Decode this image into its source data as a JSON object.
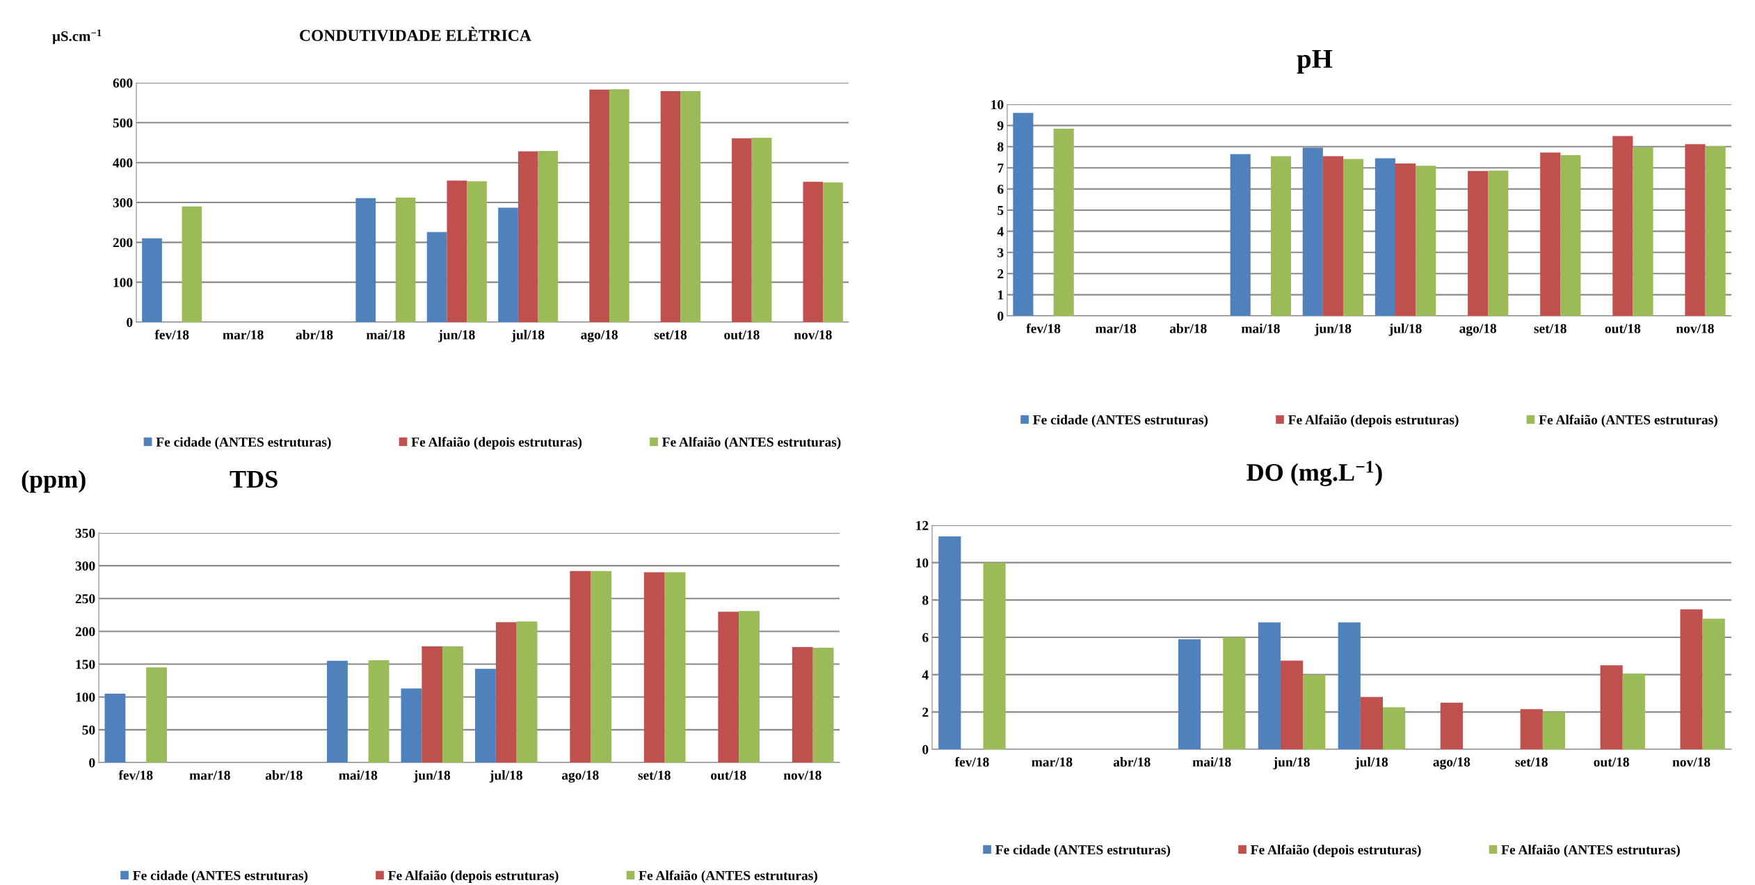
{
  "chart_data": [
    {
      "type": "bar",
      "title": "CONDUTIVIDADE ELÈTRICA",
      "ylabel": "µS.cm$^{−1}$",
      "categories": [
        "fev/18",
        "mar/18",
        "abr/18",
        "mai/18",
        "jun/18",
        "jul/18",
        "ago/18",
        "set/18",
        "out/18",
        "nov/18"
      ],
      "series": [
        {
          "name": "Fe cidade (ANTES estruturas)",
          "color": "#4f81bd",
          "values": [
            210,
            null,
            null,
            311,
            226,
            287,
            null,
            null,
            null,
            null
          ]
        },
        {
          "name": "Fe Alfaião (depois estruturas)",
          "color": "#c0504d",
          "values": [
            null,
            null,
            null,
            null,
            355,
            428,
            583,
            579,
            461,
            352
          ]
        },
        {
          "name": "Fe Alfaião (ANTES estruturas)",
          "color": "#9bbb59",
          "values": [
            290,
            null,
            null,
            312,
            353,
            429,
            584,
            579,
            462,
            350
          ]
        }
      ],
      "ylim": [
        0,
        600
      ],
      "yticks": [
        0,
        100,
        200,
        300,
        400,
        500,
        600
      ],
      "grid": "y",
      "legend": "bottom"
    },
    {
      "type": "bar",
      "title": "pH",
      "categories": [
        "fev/18",
        "mar/18",
        "abr/18",
        "mai/18",
        "jun/18",
        "jul/18",
        "ago/18",
        "set/18",
        "out/18",
        "nov/18"
      ],
      "series": [
        {
          "name": "Fe cidade (ANTES estruturas)",
          "color": "#4f81bd",
          "values": [
            9.6,
            null,
            null,
            7.65,
            7.95,
            7.45,
            null,
            null,
            null,
            null
          ]
        },
        {
          "name": "Fe Alfaião (depois estruturas)",
          "color": "#c0504d",
          "values": [
            null,
            null,
            null,
            null,
            7.55,
            7.2,
            6.85,
            7.72,
            8.5,
            8.12
          ]
        },
        {
          "name": "Fe Alfaião (ANTES estruturas)",
          "color": "#9bbb59",
          "values": [
            8.85,
            null,
            null,
            7.55,
            7.42,
            7.1,
            6.87,
            7.6,
            7.97,
            8.03
          ]
        }
      ],
      "ylim": [
        0,
        10
      ],
      "yticks": [
        0,
        1,
        2,
        3,
        4,
        5,
        6,
        7,
        8,
        9,
        10
      ],
      "grid": "y",
      "legend": "bottom"
    },
    {
      "type": "bar",
      "title": "TDS",
      "ylabel": "(ppm)",
      "categories": [
        "fev/18",
        "mar/18",
        "abr/18",
        "mai/18",
        "jun/18",
        "jul/18",
        "ago/18",
        "set/18",
        "out/18",
        "nov/18"
      ],
      "series": [
        {
          "name": "Fe cidade (ANTES estruturas)",
          "color": "#4f81bd",
          "values": [
            105,
            null,
            null,
            155,
            113,
            143,
            null,
            null,
            null,
            null
          ]
        },
        {
          "name": "Fe Alfaião (depois estruturas)",
          "color": "#c0504d",
          "values": [
            null,
            null,
            null,
            null,
            177,
            214,
            292,
            290,
            230,
            176
          ]
        },
        {
          "name": "Fe Alfaião (ANTES estruturas)",
          "color": "#9bbb59",
          "values": [
            145,
            null,
            null,
            156,
            177,
            215,
            292,
            290,
            231,
            175
          ]
        }
      ],
      "ylim": [
        0,
        350
      ],
      "yticks": [
        0,
        50,
        100,
        150,
        200,
        250,
        300,
        350
      ],
      "grid": "y",
      "legend": "bottom"
    },
    {
      "type": "bar",
      "title": "DO (mg.L$^{−1}$)",
      "categories": [
        "fev/18",
        "mar/18",
        "abr/18",
        "mai/18",
        "jun/18",
        "jul/18",
        "ago/18",
        "set/18",
        "out/18",
        "nov/18"
      ],
      "series": [
        {
          "name": "Fe cidade (ANTES estruturas)",
          "color": "#4f81bd",
          "values": [
            11.4,
            null,
            null,
            5.9,
            6.8,
            6.8,
            null,
            null,
            null,
            null
          ]
        },
        {
          "name": "Fe Alfaião (depois estruturas)",
          "color": "#c0504d",
          "values": [
            null,
            null,
            null,
            null,
            4.75,
            2.8,
            2.5,
            2.15,
            4.5,
            7.5
          ]
        },
        {
          "name": "Fe Alfaião (ANTES estruturas)",
          "color": "#9bbb59",
          "values": [
            10.0,
            null,
            null,
            6.0,
            4.0,
            2.25,
            null,
            2.0,
            4.05,
            7.0
          ]
        }
      ],
      "ylim": [
        0,
        12
      ],
      "yticks": [
        0,
        2,
        4,
        6,
        8,
        10,
        12
      ],
      "grid": "y",
      "legend": "bottom"
    }
  ]
}
